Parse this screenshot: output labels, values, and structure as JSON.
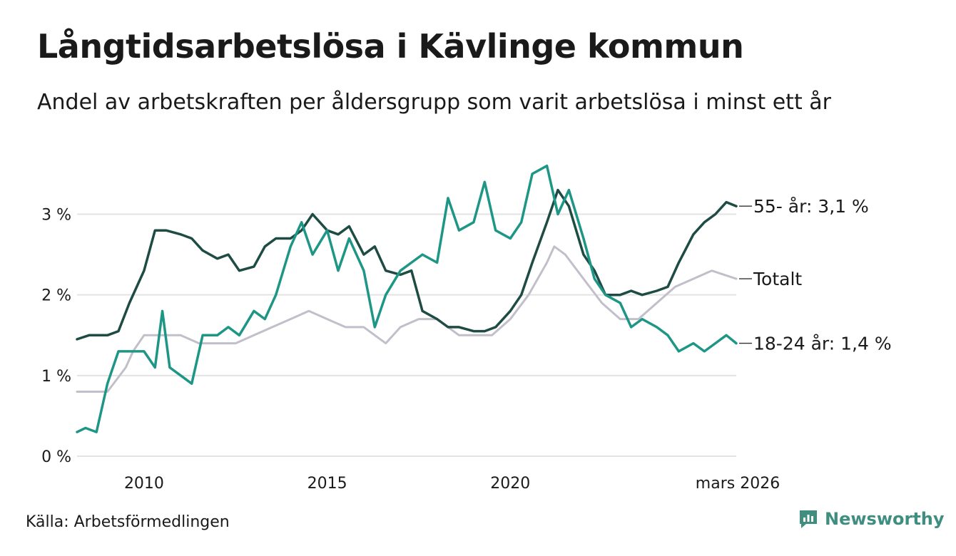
{
  "title": "Långtidsarbetslösa i Kävlinge kommun",
  "subtitle": "Andel av arbetskraften per åldersgrupp som varit arbetslösa i minst ett år",
  "source": "Källa: Arbetsförmedlingen",
  "brand": "Newsworthy",
  "colors": {
    "senior": "#1f4b45",
    "youth": "#1e9686",
    "total": "#c2bfcb",
    "grid": "#e3e3e3",
    "brand": "#3f8e80"
  },
  "chart_data": {
    "type": "line",
    "title": "Långtidsarbetslösa i Kävlinge kommun",
    "xlabel": "",
    "ylabel": "",
    "xlim": [
      2008.17,
      2026.17
    ],
    "ylim": [
      0,
      3.8
    ],
    "y_ticks": [
      {
        "value": 0,
        "label": "0 %"
      },
      {
        "value": 1,
        "label": "1 %"
      },
      {
        "value": 2,
        "label": "2 %"
      },
      {
        "value": 3,
        "label": "3 %"
      }
    ],
    "x_ticks": [
      {
        "value": 2010,
        "label": "2010"
      },
      {
        "value": 2015,
        "label": "2015"
      },
      {
        "value": 2020,
        "label": "2020"
      },
      {
        "value": 2026.17,
        "label": "mars 2026"
      }
    ],
    "series": [
      {
        "name": "Totalt",
        "key": "total",
        "end_label": "Totalt",
        "x": [
          2008.17,
          2009.0,
          2009.5,
          2009.7,
          2010.0,
          2010.5,
          2011.0,
          2011.5,
          2012.0,
          2012.5,
          2013.0,
          2013.5,
          2014.0,
          2014.5,
          2015.0,
          2015.5,
          2016.0,
          2016.3,
          2016.6,
          2017.0,
          2017.5,
          2018.0,
          2018.3,
          2018.6,
          2019.0,
          2019.5,
          2020.0,
          2020.5,
          2021.0,
          2021.2,
          2021.5,
          2022.0,
          2022.5,
          2023.0,
          2023.5,
          2024.0,
          2024.5,
          2025.0,
          2025.5,
          2026.17
        ],
        "values": [
          0.8,
          0.8,
          1.1,
          1.3,
          1.5,
          1.5,
          1.5,
          1.4,
          1.4,
          1.4,
          1.5,
          1.6,
          1.7,
          1.8,
          1.7,
          1.6,
          1.6,
          1.5,
          1.4,
          1.6,
          1.7,
          1.7,
          1.6,
          1.5,
          1.5,
          1.5,
          1.7,
          2.0,
          2.4,
          2.6,
          2.5,
          2.2,
          1.9,
          1.7,
          1.7,
          1.9,
          2.1,
          2.2,
          2.3,
          2.2
        ]
      },
      {
        "name": "55- år",
        "key": "senior",
        "end_label": "55- år: 3,1 %",
        "x": [
          2008.17,
          2008.5,
          2009.0,
          2009.3,
          2009.6,
          2010.0,
          2010.3,
          2010.6,
          2011.0,
          2011.3,
          2011.6,
          2012.0,
          2012.3,
          2012.6,
          2013.0,
          2013.3,
          2013.6,
          2014.0,
          2014.3,
          2014.6,
          2015.0,
          2015.3,
          2015.6,
          2016.0,
          2016.3,
          2016.6,
          2017.0,
          2017.3,
          2017.6,
          2018.0,
          2018.3,
          2018.6,
          2019.0,
          2019.3,
          2019.6,
          2020.0,
          2020.3,
          2020.6,
          2021.0,
          2021.3,
          2021.6,
          2022.0,
          2022.3,
          2022.6,
          2023.0,
          2023.3,
          2023.6,
          2024.0,
          2024.3,
          2024.6,
          2025.0,
          2025.3,
          2025.6,
          2025.9,
          2026.17
        ],
        "values": [
          1.45,
          1.5,
          1.5,
          1.55,
          1.9,
          2.3,
          2.8,
          2.8,
          2.75,
          2.7,
          2.55,
          2.45,
          2.5,
          2.3,
          2.35,
          2.6,
          2.7,
          2.7,
          2.8,
          3.0,
          2.8,
          2.75,
          2.85,
          2.5,
          2.6,
          2.3,
          2.25,
          2.3,
          1.8,
          1.7,
          1.6,
          1.6,
          1.55,
          1.55,
          1.6,
          1.8,
          2.0,
          2.4,
          2.9,
          3.3,
          3.1,
          2.5,
          2.3,
          2.0,
          2.0,
          2.05,
          2.0,
          2.05,
          2.1,
          2.4,
          2.75,
          2.9,
          3.0,
          3.15,
          3.1
        ]
      },
      {
        "name": "18-24 år",
        "key": "youth",
        "end_label": "18-24 år: 1,4 %",
        "x": [
          2008.17,
          2008.4,
          2008.7,
          2009.0,
          2009.3,
          2009.6,
          2010.0,
          2010.3,
          2010.5,
          2010.7,
          2011.0,
          2011.3,
          2011.6,
          2012.0,
          2012.3,
          2012.6,
          2013.0,
          2013.3,
          2013.6,
          2014.0,
          2014.3,
          2014.6,
          2015.0,
          2015.3,
          2015.6,
          2016.0,
          2016.3,
          2016.6,
          2017.0,
          2017.3,
          2017.6,
          2018.0,
          2018.3,
          2018.6,
          2019.0,
          2019.3,
          2019.6,
          2020.0,
          2020.3,
          2020.6,
          2021.0,
          2021.3,
          2021.6,
          2022.0,
          2022.3,
          2022.6,
          2023.0,
          2023.3,
          2023.6,
          2024.0,
          2024.3,
          2024.6,
          2025.0,
          2025.3,
          2025.6,
          2025.9,
          2026.17
        ],
        "values": [
          0.3,
          0.35,
          0.3,
          0.9,
          1.3,
          1.3,
          1.3,
          1.1,
          1.8,
          1.1,
          1.0,
          0.9,
          1.5,
          1.5,
          1.6,
          1.5,
          1.8,
          1.7,
          2.0,
          2.6,
          2.9,
          2.5,
          2.8,
          2.3,
          2.7,
          2.3,
          1.6,
          2.0,
          2.3,
          2.4,
          2.5,
          2.4,
          3.2,
          2.8,
          2.9,
          3.4,
          2.8,
          2.7,
          2.9,
          3.5,
          3.6,
          3.0,
          3.3,
          2.7,
          2.2,
          2.0,
          1.9,
          1.6,
          1.7,
          1.6,
          1.5,
          1.3,
          1.4,
          1.3,
          1.4,
          1.5,
          1.4
        ]
      }
    ]
  }
}
